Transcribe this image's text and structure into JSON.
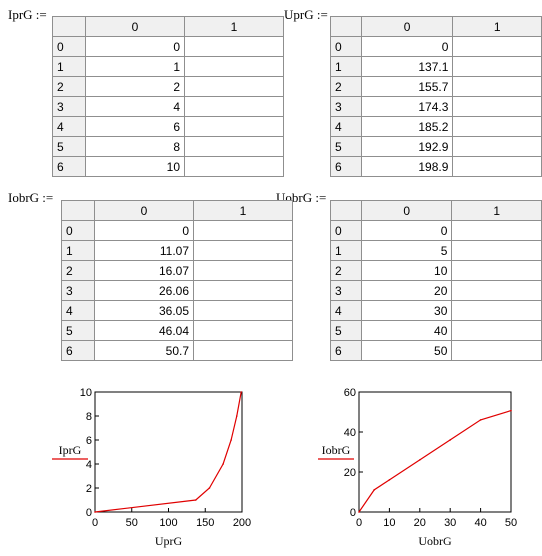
{
  "matrices": [
    {
      "key": "IprG",
      "label": "IprG :=",
      "col_headers": [
        "0",
        "1"
      ],
      "rows": [
        "0",
        "1",
        "2",
        "4",
        "6",
        "8",
        "10"
      ]
    },
    {
      "key": "UprG",
      "label": "UprG :=",
      "col_headers": [
        "0",
        "1"
      ],
      "rows": [
        "0",
        "137.1",
        "155.7",
        "174.3",
        "185.2",
        "192.9",
        "198.9"
      ]
    },
    {
      "key": "IobrG",
      "label": "IobrG :=",
      "col_headers": [
        "0",
        "1"
      ],
      "rows": [
        "0",
        "11.07",
        "16.07",
        "26.06",
        "36.05",
        "46.04",
        "50.7"
      ]
    },
    {
      "key": "UobrG",
      "label": "UobrG :=",
      "col_headers": [
        "0",
        "1"
      ],
      "rows": [
        "0",
        "5",
        "10",
        "20",
        "30",
        "40",
        "50"
      ]
    }
  ],
  "row_indices": [
    "0",
    "1",
    "2",
    "3",
    "4",
    "5",
    "6"
  ],
  "chart_data": [
    {
      "type": "line",
      "xlabel": "UprG",
      "ylabel": "IprG",
      "series_name": "IprG",
      "x": [
        0,
        137.1,
        155.7,
        174.3,
        185.2,
        192.9,
        198.9
      ],
      "y": [
        0,
        1,
        2,
        4,
        6,
        8,
        10
      ],
      "xlim": [
        0,
        200
      ],
      "ylim": [
        0,
        10
      ],
      "xticks": [
        "0",
        "50",
        "100",
        "150",
        "200"
      ],
      "yticks": [
        "0",
        "2",
        "4",
        "6",
        "8",
        "10"
      ],
      "line_color": "#e00000"
    },
    {
      "type": "line",
      "xlabel": "UobrG",
      "ylabel": "IobrG",
      "series_name": "IobrG",
      "x": [
        0,
        5,
        10,
        20,
        30,
        40,
        50
      ],
      "y": [
        0,
        11.07,
        16.07,
        26.06,
        36.05,
        46.04,
        50.7
      ],
      "xlim": [
        0,
        50
      ],
      "ylim": [
        0,
        60
      ],
      "xticks": [
        "0",
        "10",
        "20",
        "30",
        "40",
        "50"
      ],
      "yticks": [
        "0",
        "20",
        "40",
        "60"
      ],
      "line_color": "#e00000"
    }
  ]
}
